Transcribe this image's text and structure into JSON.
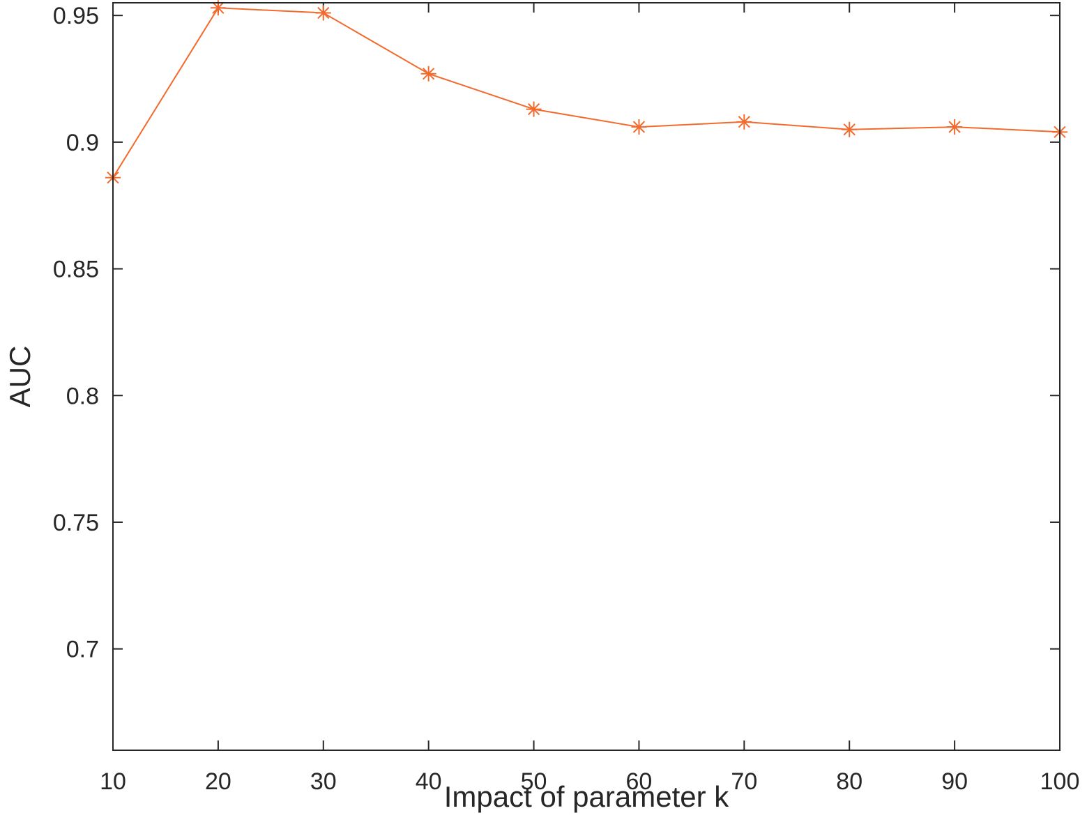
{
  "chart_data": {
    "type": "line",
    "title": "",
    "xlabel": "Impact of parameter k",
    "ylabel": "AUC",
    "xlim": [
      10,
      100
    ],
    "ylim": [
      0.66,
      0.955
    ],
    "xticks": [
      10,
      20,
      30,
      40,
      50,
      60,
      70,
      80,
      90,
      100
    ],
    "xtick_labels": [
      "10",
      "20",
      "30",
      "40",
      "50",
      "60",
      "70",
      "80",
      "90",
      "100"
    ],
    "yticks": [
      0.7,
      0.75,
      0.8,
      0.85,
      0.9,
      0.95
    ],
    "ytick_labels": [
      "0.7",
      "0.75",
      "0.8",
      "0.85",
      "0.9",
      "0.95"
    ],
    "grid": false,
    "legend": "none",
    "series": [
      {
        "marker": "asterisk",
        "color": "#F26B2C",
        "x": [
          10,
          20,
          30,
          40,
          50,
          60,
          70,
          80,
          90,
          100
        ],
        "values": [
          0.886,
          0.953,
          0.951,
          0.927,
          0.913,
          0.906,
          0.908,
          0.905,
          0.906,
          0.904
        ]
      }
    ]
  }
}
